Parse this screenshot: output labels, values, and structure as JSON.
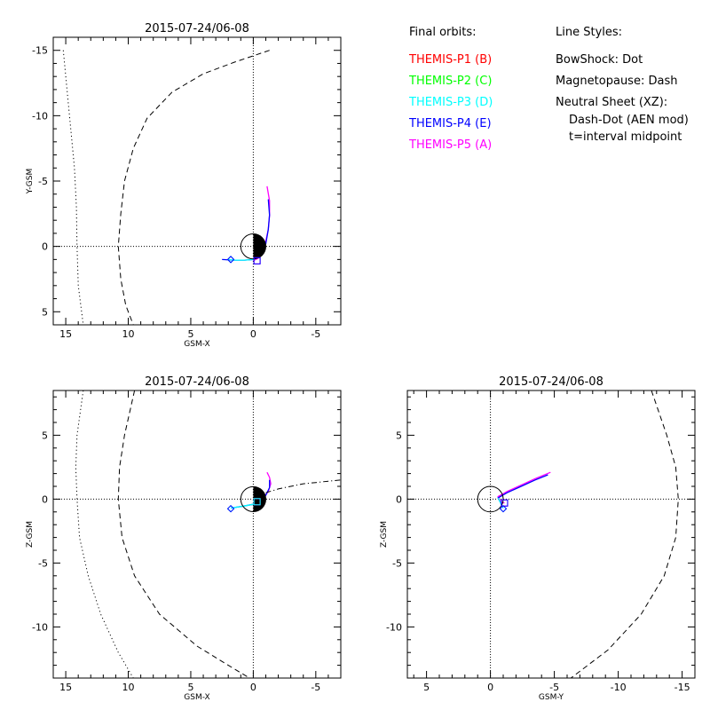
{
  "legend": {
    "orbits_title": "Final orbits:",
    "orbits": [
      {
        "label": "THEMIS-P1 (B)",
        "color": "#ff0000"
      },
      {
        "label": "THEMIS-P2 (C)",
        "color": "#00ff00"
      },
      {
        "label": "THEMIS-P3 (D)",
        "color": "#00ffff"
      },
      {
        "label": "THEMIS-P4 (E)",
        "color": "#0000ff"
      },
      {
        "label": "THEMIS-P5 (A)",
        "color": "#ff00ff"
      }
    ],
    "styles_title": "Line Styles:",
    "styles": [
      "BowShock: Dot",
      "Magnetopause: Dash",
      "Neutral Sheet (XZ):",
      "  Dash-Dot (AEN mod)",
      "  t=interval midpoint"
    ]
  },
  "chart_data": [
    {
      "type": "scatter",
      "title": "2015-07-24/06-08",
      "xlabel": "GSM-X",
      "ylabel": "Y-GSM",
      "xlim": [
        16,
        -7
      ],
      "ylim": [
        6,
        -16
      ],
      "xticks": [
        15,
        10,
        5,
        0,
        -5
      ],
      "yticks": [
        -15,
        -10,
        -5,
        0,
        5
      ],
      "earth": {
        "x": 0,
        "y": 0,
        "r": 1
      },
      "series": [
        {
          "color": "#ff00ff",
          "style": "solid",
          "points": [
            [
              -1.1,
              -4.6
            ],
            [
              -1.3,
              -3.5
            ],
            [
              -1.3,
              -2.4
            ],
            [
              -1.2,
              -1.3
            ],
            [
              -1.0,
              -0.4
            ],
            [
              -0.7,
              0.4
            ],
            [
              -0.4,
              0.9
            ],
            [
              0,
              1.1
            ]
          ]
        },
        {
          "color": "#0000ff",
          "style": "solid",
          "points": [
            [
              -1.2,
              -3.6
            ],
            [
              -1.3,
              -2.4
            ],
            [
              -1.2,
              -1.3
            ],
            [
              -1.0,
              -0.2
            ],
            [
              -0.6,
              0.6
            ],
            [
              0,
              1.0
            ],
            [
              0.7,
              1.05
            ],
            [
              1.5,
              1.05
            ],
            [
              2.5,
              1.0
            ]
          ]
        },
        {
          "color": "#00ffff",
          "style": "solid",
          "points": [
            [
              -0.6,
              0.7
            ],
            [
              0,
              1.0
            ],
            [
              0.7,
              1.05
            ],
            [
              1.5,
              1.05
            ],
            [
              2.0,
              1.0
            ]
          ]
        },
        {
          "color": "#000000",
          "style": "dot",
          "points": [
            [
              15.2,
              -15
            ],
            [
              14.9,
              -12
            ],
            [
              14.6,
              -9
            ],
            [
              14.3,
              -6
            ],
            [
              14.15,
              -3
            ],
            [
              14.1,
              0
            ],
            [
              14.0,
              3
            ],
            [
              13.6,
              6
            ]
          ]
        },
        {
          "color": "#000000",
          "style": "dash",
          "points": [
            [
              -1.3,
              -15
            ],
            [
              1.5,
              -14.1
            ],
            [
              4,
              -13.2
            ],
            [
              6.5,
              -11.8
            ],
            [
              8.5,
              -9.8
            ],
            [
              9.6,
              -7.5
            ],
            [
              10.3,
              -5
            ],
            [
              10.6,
              -2.5
            ],
            [
              10.8,
              0
            ],
            [
              10.6,
              2.5
            ],
            [
              10.2,
              4.5
            ],
            [
              9.6,
              6
            ]
          ]
        }
      ],
      "markers": [
        {
          "shape": "diamond",
          "color": "#00ffff",
          "x": 1.8,
          "y": 1.0
        },
        {
          "shape": "diamond",
          "color": "#0000ff",
          "x": 1.8,
          "y": 1.0
        },
        {
          "shape": "square",
          "color": "#ff00ff",
          "x": -0.3,
          "y": 1.1
        },
        {
          "shape": "square",
          "color": "#0000ff",
          "x": -0.3,
          "y": 1.1
        }
      ]
    },
    {
      "type": "scatter",
      "title": "2015-07-24/06-08",
      "xlabel": "GSM-X",
      "ylabel": "Z-GSM",
      "xlim": [
        16,
        -7
      ],
      "ylim": [
        -14,
        8.5
      ],
      "xticks": [
        15,
        10,
        5,
        0,
        -5
      ],
      "yticks": [
        5,
        0,
        -5,
        -10
      ],
      "earth": {
        "x": 0,
        "y": 0,
        "r": 1
      },
      "series": [
        {
          "color": "#ff00ff",
          "style": "solid",
          "points": [
            [
              -1.1,
              2.1
            ],
            [
              -1.3,
              1.7
            ],
            [
              -1.4,
              1.2
            ],
            [
              -1.2,
              0.6
            ],
            [
              -0.8,
              0.1
            ],
            [
              -0.3,
              -0.2
            ]
          ]
        },
        {
          "color": "#0000ff",
          "style": "solid",
          "points": [
            [
              -1.3,
              1.5
            ],
            [
              -1.3,
              0.9
            ],
            [
              -1.0,
              0.3
            ],
            [
              -0.6,
              -0.1
            ],
            [
              0,
              -0.4
            ],
            [
              0.8,
              -0.55
            ],
            [
              1.8,
              -0.7
            ]
          ]
        },
        {
          "color": "#00ffff",
          "style": "solid",
          "points": [
            [
              0,
              -0.4
            ],
            [
              0.8,
              -0.55
            ],
            [
              1.8,
              -0.7
            ]
          ]
        },
        {
          "color": "#000000",
          "style": "dashdot",
          "points": [
            [
              -1,
              0.5
            ],
            [
              -2,
              0.8
            ],
            [
              -3,
              1.0
            ],
            [
              -4,
              1.2
            ],
            [
              -5,
              1.3
            ],
            [
              -6,
              1.4
            ],
            [
              -7,
              1.5
            ]
          ]
        },
        {
          "color": "#000000",
          "style": "dot",
          "points": [
            [
              13.6,
              8.5
            ],
            [
              14.1,
              5
            ],
            [
              14.2,
              2.5
            ],
            [
              14.1,
              0
            ],
            [
              13.9,
              -3
            ],
            [
              13.2,
              -6
            ],
            [
              12.2,
              -9
            ],
            [
              10.8,
              -12
            ],
            [
              9.6,
              -14
            ]
          ]
        },
        {
          "color": "#000000",
          "style": "dash",
          "points": [
            [
              9.5,
              8.5
            ],
            [
              10.3,
              5
            ],
            [
              10.7,
              2.5
            ],
            [
              10.8,
              0
            ],
            [
              10.5,
              -3
            ],
            [
              9.5,
              -6
            ],
            [
              7.5,
              -9
            ],
            [
              4.5,
              -11.5
            ],
            [
              2,
              -13
            ],
            [
              0.3,
              -14
            ]
          ]
        }
      ],
      "markers": [
        {
          "shape": "diamond",
          "color": "#00ffff",
          "x": 1.8,
          "y": -0.75
        },
        {
          "shape": "diamond",
          "color": "#0000ff",
          "x": 1.8,
          "y": -0.75
        },
        {
          "shape": "square",
          "color": "#ff00ff",
          "x": -0.3,
          "y": -0.2
        },
        {
          "shape": "square",
          "color": "#00ffff",
          "x": -0.3,
          "y": -0.2
        }
      ]
    },
    {
      "type": "scatter",
      "title": "2015-07-24/06-08",
      "xlabel": "GSM-Y",
      "ylabel": "Z-GSM",
      "xlim": [
        6.5,
        -16
      ],
      "ylim": [
        -14,
        8.5
      ],
      "xticks": [
        5,
        0,
        -5,
        -10,
        -15
      ],
      "yticks": [
        5,
        0,
        -5,
        -10
      ],
      "earth": {
        "x": 0,
        "y": 0,
        "r": 1
      },
      "series": [
        {
          "color": "#ff00ff",
          "style": "solid",
          "points": [
            [
              -4.7,
              2.1
            ],
            [
              -3.5,
              1.6
            ],
            [
              -2.4,
              1.1
            ],
            [
              -1.3,
              0.6
            ],
            [
              -0.6,
              0.2
            ],
            [
              -0.8,
              -0.2
            ],
            [
              -1.1,
              -0.3
            ]
          ]
        },
        {
          "color": "#0000ff",
          "style": "solid",
          "points": [
            [
              -4.5,
              1.9
            ],
            [
              -3.5,
              1.5
            ],
            [
              -2.4,
              1.0
            ],
            [
              -1.3,
              0.5
            ],
            [
              -0.6,
              0.1
            ],
            [
              -0.8,
              -0.3
            ],
            [
              -1.0,
              -0.7
            ]
          ]
        },
        {
          "color": "#00ffff",
          "style": "solid",
          "points": [
            [
              -0.6,
              0.1
            ],
            [
              -0.8,
              -0.3
            ],
            [
              -1.0,
              -0.7
            ]
          ]
        },
        {
          "color": "#000000",
          "style": "dash",
          "points": [
            [
              -12.6,
              8.5
            ],
            [
              -13.8,
              5
            ],
            [
              -14.5,
              2.5
            ],
            [
              -14.7,
              0
            ],
            [
              -14.5,
              -3
            ],
            [
              -13.6,
              -6
            ],
            [
              -11.8,
              -9
            ],
            [
              -9.2,
              -11.8
            ],
            [
              -6.3,
              -14
            ]
          ]
        }
      ],
      "markers": [
        {
          "shape": "diamond",
          "color": "#00ffff",
          "x": -1.0,
          "y": -0.75
        },
        {
          "shape": "diamond",
          "color": "#0000ff",
          "x": -1.0,
          "y": -0.75
        },
        {
          "shape": "square",
          "color": "#ff00ff",
          "x": -1.1,
          "y": -0.3
        },
        {
          "shape": "square",
          "color": "#0000ff",
          "x": -1.1,
          "y": -0.3
        }
      ]
    }
  ]
}
